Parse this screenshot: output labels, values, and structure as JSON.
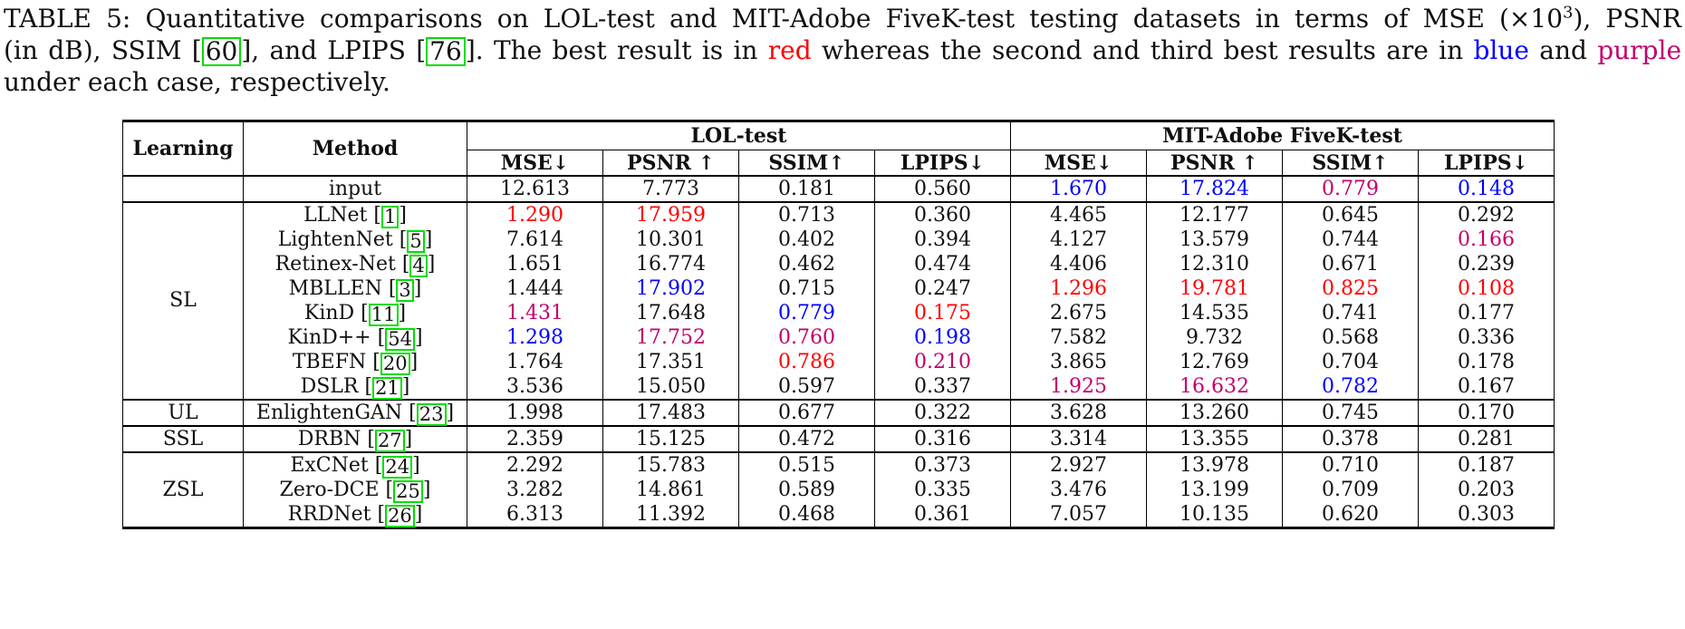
{
  "colors": {
    "red": "#FF0000",
    "blue": "#0000FF",
    "purple": "#C2006B",
    "citation_green": "#00DD00",
    "text": "#101010"
  },
  "caption": {
    "lines": [
      [
        {
          "text": "TABLE 5: Quantitative comparisons on LOL-test and MIT-Adobe FiveK-test testing datasets in terms of MSE (×10",
          "style": "normal"
        },
        {
          "text": "3",
          "style": "sup"
        },
        {
          "text": "), PSNR",
          "style": "normal"
        }
      ],
      [
        {
          "text": "(in dB), SSIM [",
          "style": "normal"
        },
        {
          "text": "60",
          "style": "citebox"
        },
        {
          "text": "], and LPIPS [",
          "style": "normal"
        },
        {
          "text": "76",
          "style": "citebox"
        },
        {
          "text": "]. The best result is in ",
          "style": "normal"
        },
        {
          "text": "red",
          "style": "red"
        },
        {
          "text": " whereas the second and third best results are in ",
          "style": "normal"
        },
        {
          "text": "blue",
          "style": "blue"
        },
        {
          "text": " and ",
          "style": "normal"
        },
        {
          "text": "purple",
          "style": "purple"
        }
      ],
      [
        {
          "text": "under each case, respectively.",
          "style": "normal"
        }
      ]
    ]
  },
  "table": {
    "header": {
      "learning": "Learning",
      "method": "Method",
      "groups": [
        {
          "label": "LOL-test"
        },
        {
          "label": "MIT-Adobe FiveK-test"
        }
      ],
      "metrics": [
        "MSE↓",
        "PSNR ↑",
        "SSIM↑",
        "LPIPS↓"
      ]
    },
    "sections": [
      {
        "learning": "",
        "rows": [
          {
            "method": "input",
            "cite": null,
            "values": [
              [
                "12.613",
                "k"
              ],
              [
                "7.773",
                "k"
              ],
              [
                "0.181",
                "k"
              ],
              [
                "0.560",
                "k"
              ],
              [
                "1.670",
                "b"
              ],
              [
                "17.824",
                "b"
              ],
              [
                "0.779",
                "p"
              ],
              [
                "0.148",
                "b"
              ]
            ]
          }
        ]
      },
      {
        "learning": "SL",
        "rows": [
          {
            "method": "LLNet",
            "cite": "1",
            "values": [
              [
                "1.290",
                "r"
              ],
              [
                "17.959",
                "r"
              ],
              [
                "0.713",
                "k"
              ],
              [
                "0.360",
                "k"
              ],
              [
                "4.465",
                "k"
              ],
              [
                "12.177",
                "k"
              ],
              [
                "0.645",
                "k"
              ],
              [
                "0.292",
                "k"
              ]
            ]
          },
          {
            "method": "LightenNet",
            "cite": "5",
            "values": [
              [
                "7.614",
                "k"
              ],
              [
                "10.301",
                "k"
              ],
              [
                "0.402",
                "k"
              ],
              [
                "0.394",
                "k"
              ],
              [
                "4.127",
                "k"
              ],
              [
                "13.579",
                "k"
              ],
              [
                "0.744",
                "k"
              ],
              [
                "0.166",
                "p"
              ]
            ]
          },
          {
            "method": "Retinex-Net",
            "cite": "4",
            "values": [
              [
                "1.651",
                "k"
              ],
              [
                "16.774",
                "k"
              ],
              [
                "0.462",
                "k"
              ],
              [
                "0.474",
                "k"
              ],
              [
                "4.406",
                "k"
              ],
              [
                "12.310",
                "k"
              ],
              [
                "0.671",
                "k"
              ],
              [
                "0.239",
                "k"
              ]
            ]
          },
          {
            "method": "MBLLEN",
            "cite": "3",
            "values": [
              [
                "1.444",
                "k"
              ],
              [
                "17.902",
                "b"
              ],
              [
                "0.715",
                "k"
              ],
              [
                "0.247",
                "k"
              ],
              [
                "1.296",
                "r"
              ],
              [
                "19.781",
                "r"
              ],
              [
                "0.825",
                "r"
              ],
              [
                "0.108",
                "r"
              ]
            ]
          },
          {
            "method": "KinD",
            "cite": "11",
            "values": [
              [
                "1.431",
                "p"
              ],
              [
                "17.648",
                "k"
              ],
              [
                "0.779",
                "b"
              ],
              [
                "0.175",
                "r"
              ],
              [
                "2.675",
                "k"
              ],
              [
                "14.535",
                "k"
              ],
              [
                "0.741",
                "k"
              ],
              [
                "0.177",
                "k"
              ]
            ]
          },
          {
            "method": "KinD++",
            "cite": "54",
            "values": [
              [
                "1.298",
                "b"
              ],
              [
                "17.752",
                "p"
              ],
              [
                "0.760",
                "p"
              ],
              [
                "0.198",
                "b"
              ],
              [
                "7.582",
                "k"
              ],
              [
                "9.732",
                "k"
              ],
              [
                "0.568",
                "k"
              ],
              [
                "0.336",
                "k"
              ]
            ]
          },
          {
            "method": "TBEFN",
            "cite": "20",
            "values": [
              [
                "1.764",
                "k"
              ],
              [
                "17.351",
                "k"
              ],
              [
                "0.786",
                "r"
              ],
              [
                "0.210",
                "p"
              ],
              [
                "3.865",
                "k"
              ],
              [
                "12.769",
                "k"
              ],
              [
                "0.704",
                "k"
              ],
              [
                "0.178",
                "k"
              ]
            ]
          },
          {
            "method": "DSLR",
            "cite": "21",
            "values": [
              [
                "3.536",
                "k"
              ],
              [
                "15.050",
                "k"
              ],
              [
                "0.597",
                "k"
              ],
              [
                "0.337",
                "k"
              ],
              [
                "1.925",
                "p"
              ],
              [
                "16.632",
                "p"
              ],
              [
                "0.782",
                "b"
              ],
              [
                "0.167",
                "k"
              ]
            ]
          }
        ]
      },
      {
        "learning": "UL",
        "rows": [
          {
            "method": "EnlightenGAN",
            "cite": "23",
            "values": [
              [
                "1.998",
                "k"
              ],
              [
                "17.483",
                "k"
              ],
              [
                "0.677",
                "k"
              ],
              [
                "0.322",
                "k"
              ],
              [
                "3.628",
                "k"
              ],
              [
                "13.260",
                "k"
              ],
              [
                "0.745",
                "k"
              ],
              [
                "0.170",
                "k"
              ]
            ]
          }
        ]
      },
      {
        "learning": "SSL",
        "rows": [
          {
            "method": "DRBN",
            "cite": "27",
            "values": [
              [
                "2.359",
                "k"
              ],
              [
                "15.125",
                "k"
              ],
              [
                "0.472",
                "k"
              ],
              [
                "0.316",
                "k"
              ],
              [
                "3.314",
                "k"
              ],
              [
                "13.355",
                "k"
              ],
              [
                "0.378",
                "k"
              ],
              [
                "0.281",
                "k"
              ]
            ]
          }
        ]
      },
      {
        "learning": "ZSL",
        "rows": [
          {
            "method": "ExCNet",
            "cite": "24",
            "values": [
              [
                "2.292",
                "k"
              ],
              [
                "15.783",
                "k"
              ],
              [
                "0.515",
                "k"
              ],
              [
                "0.373",
                "k"
              ],
              [
                "2.927",
                "k"
              ],
              [
                "13.978",
                "k"
              ],
              [
                "0.710",
                "k"
              ],
              [
                "0.187",
                "k"
              ]
            ]
          },
          {
            "method": "Zero-DCE",
            "cite": "25",
            "values": [
              [
                "3.282",
                "k"
              ],
              [
                "14.861",
                "k"
              ],
              [
                "0.589",
                "k"
              ],
              [
                "0.335",
                "k"
              ],
              [
                "3.476",
                "k"
              ],
              [
                "13.199",
                "k"
              ],
              [
                "0.709",
                "k"
              ],
              [
                "0.203",
                "k"
              ]
            ]
          },
          {
            "method": "RRDNet",
            "cite": "26",
            "values": [
              [
                "6.313",
                "k"
              ],
              [
                "11.392",
                "k"
              ],
              [
                "0.468",
                "k"
              ],
              [
                "0.361",
                "k"
              ],
              [
                "7.057",
                "k"
              ],
              [
                "10.135",
                "k"
              ],
              [
                "0.620",
                "k"
              ],
              [
                "0.303",
                "k"
              ]
            ]
          }
        ]
      }
    ]
  }
}
